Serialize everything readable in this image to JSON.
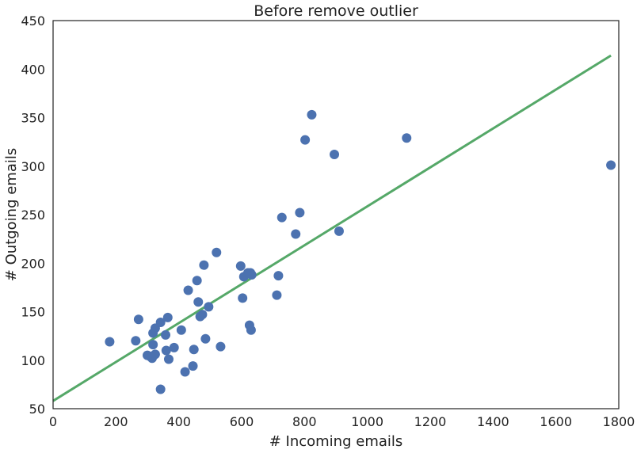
{
  "chart_data": {
    "type": "scatter",
    "title": "Before remove outlier",
    "xlabel": "# Incoming emails",
    "ylabel": "# Outgoing emails",
    "xlim": [
      0,
      1800
    ],
    "ylim": [
      50,
      450
    ],
    "xticks": [
      0,
      200,
      400,
      600,
      800,
      1000,
      1200,
      1400,
      1600,
      1800
    ],
    "yticks": [
      50,
      100,
      150,
      200,
      250,
      300,
      350,
      400,
      450
    ],
    "grid": false,
    "colors": {
      "points": "#4c72b0",
      "fit_line": "#55a868",
      "axes": "#222222"
    },
    "points": [
      [
        180,
        119
      ],
      [
        263,
        120
      ],
      [
        272,
        142
      ],
      [
        300,
        105
      ],
      [
        308,
        104
      ],
      [
        315,
        102
      ],
      [
        318,
        128
      ],
      [
        318,
        116
      ],
      [
        325,
        106
      ],
      [
        325,
        133
      ],
      [
        342,
        139
      ],
      [
        342,
        70
      ],
      [
        358,
        126
      ],
      [
        360,
        110
      ],
      [
        365,
        144
      ],
      [
        368,
        101
      ],
      [
        385,
        113
      ],
      [
        408,
        131
      ],
      [
        420,
        88
      ],
      [
        430,
        172
      ],
      [
        445,
        94
      ],
      [
        448,
        111
      ],
      [
        458,
        182
      ],
      [
        462,
        160
      ],
      [
        468,
        145
      ],
      [
        475,
        147
      ],
      [
        480,
        198
      ],
      [
        485,
        122
      ],
      [
        495,
        155
      ],
      [
        520,
        211
      ],
      [
        533,
        114
      ],
      [
        597,
        197
      ],
      [
        603,
        164
      ],
      [
        607,
        186
      ],
      [
        620,
        190
      ],
      [
        625,
        136
      ],
      [
        628,
        190
      ],
      [
        630,
        131
      ],
      [
        632,
        188
      ],
      [
        712,
        167
      ],
      [
        717,
        187
      ],
      [
        728,
        247
      ],
      [
        772,
        230
      ],
      [
        785,
        252
      ],
      [
        802,
        327
      ],
      [
        823,
        353
      ],
      [
        895,
        312
      ],
      [
        910,
        233
      ],
      [
        1125,
        329
      ],
      [
        1775,
        301
      ]
    ],
    "fit_line": {
      "x": [
        0,
        1775
      ],
      "y": [
        58,
        414
      ]
    }
  }
}
